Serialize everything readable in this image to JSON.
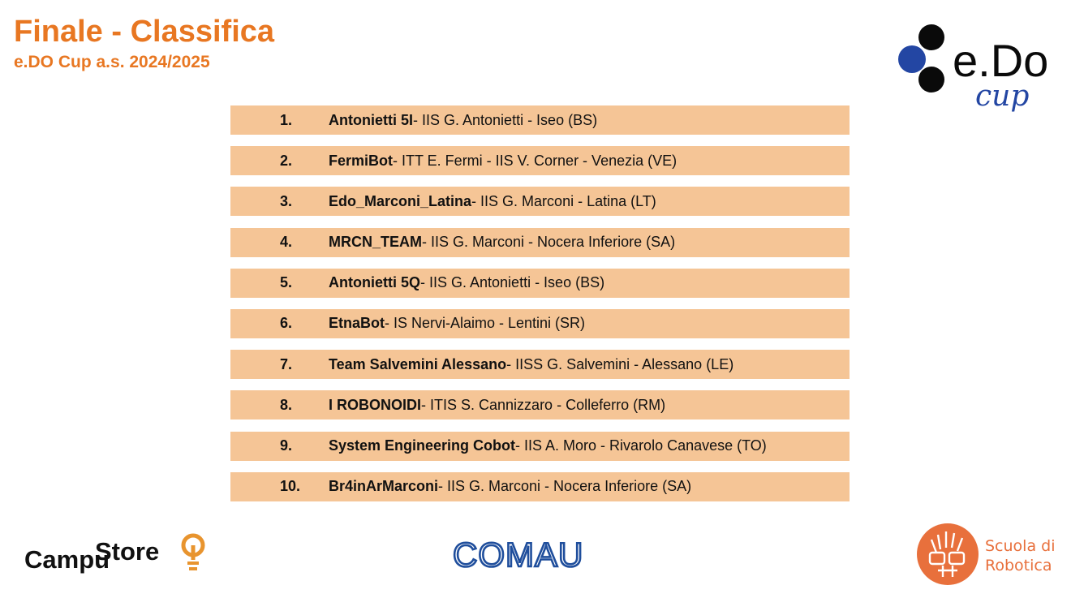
{
  "header": {
    "title": "Finale - Classifica",
    "subtitle": "e.DO Cup a.s. 2024/2025"
  },
  "ranking": [
    {
      "rank": "1.",
      "team": "Antonietti 5I",
      "detail": " - IIS G. Antonietti - Iseo (BS)"
    },
    {
      "rank": "2.",
      "team": "FermiBot",
      "detail": " - ITT E. Fermi - IIS V. Corner - Venezia (VE)"
    },
    {
      "rank": "3.",
      "team": "Edo_Marconi_Latina",
      "detail": " - IIS G. Marconi - Latina (LT)"
    },
    {
      "rank": "4.",
      "team": "MRCN_TEAM",
      "detail": " - IIS G. Marconi - Nocera Inferiore (SA)"
    },
    {
      "rank": "5.",
      "team": "Antonietti 5Q",
      "detail": " - IIS G. Antonietti - Iseo (BS)"
    },
    {
      "rank": "6.",
      "team": "EtnaBot",
      "detail": " - IS Nervi-Alaimo - Lentini (SR)"
    },
    {
      "rank": "7.",
      "team": "Team Salvemini Alessano",
      "detail": " - IISS G. Salvemini - Alessano (LE)"
    },
    {
      "rank": "8.",
      "team": "I ROBONOIDI",
      "detail": " - ITIS S. Cannizzaro - Colleferro (RM)"
    },
    {
      "rank": "9.",
      "team": "System Engineering Cobot",
      "detail": " - IIS A. Moro - Rivarolo Canavese (TO)"
    },
    {
      "rank": "10.",
      "team": "Br4inArMarconi",
      "detail": " - IIS G. Marconi - Nocera Inferiore (SA)"
    }
  ],
  "logos": {
    "edo": {
      "main": "e.Do",
      "sub": "cup"
    },
    "campustore": {
      "part1": "Campu",
      "part2": "Store"
    },
    "comau": {
      "text": "COMAU"
    },
    "scuola": {
      "line1": "Scuola di",
      "line2": "Robotica"
    }
  },
  "colors": {
    "accent": "#e87722",
    "row_bg": "#f5c596",
    "comau_blue": "#1f4e9c",
    "edo_blue": "#2346a3",
    "sdr_orange": "#e8703c"
  }
}
